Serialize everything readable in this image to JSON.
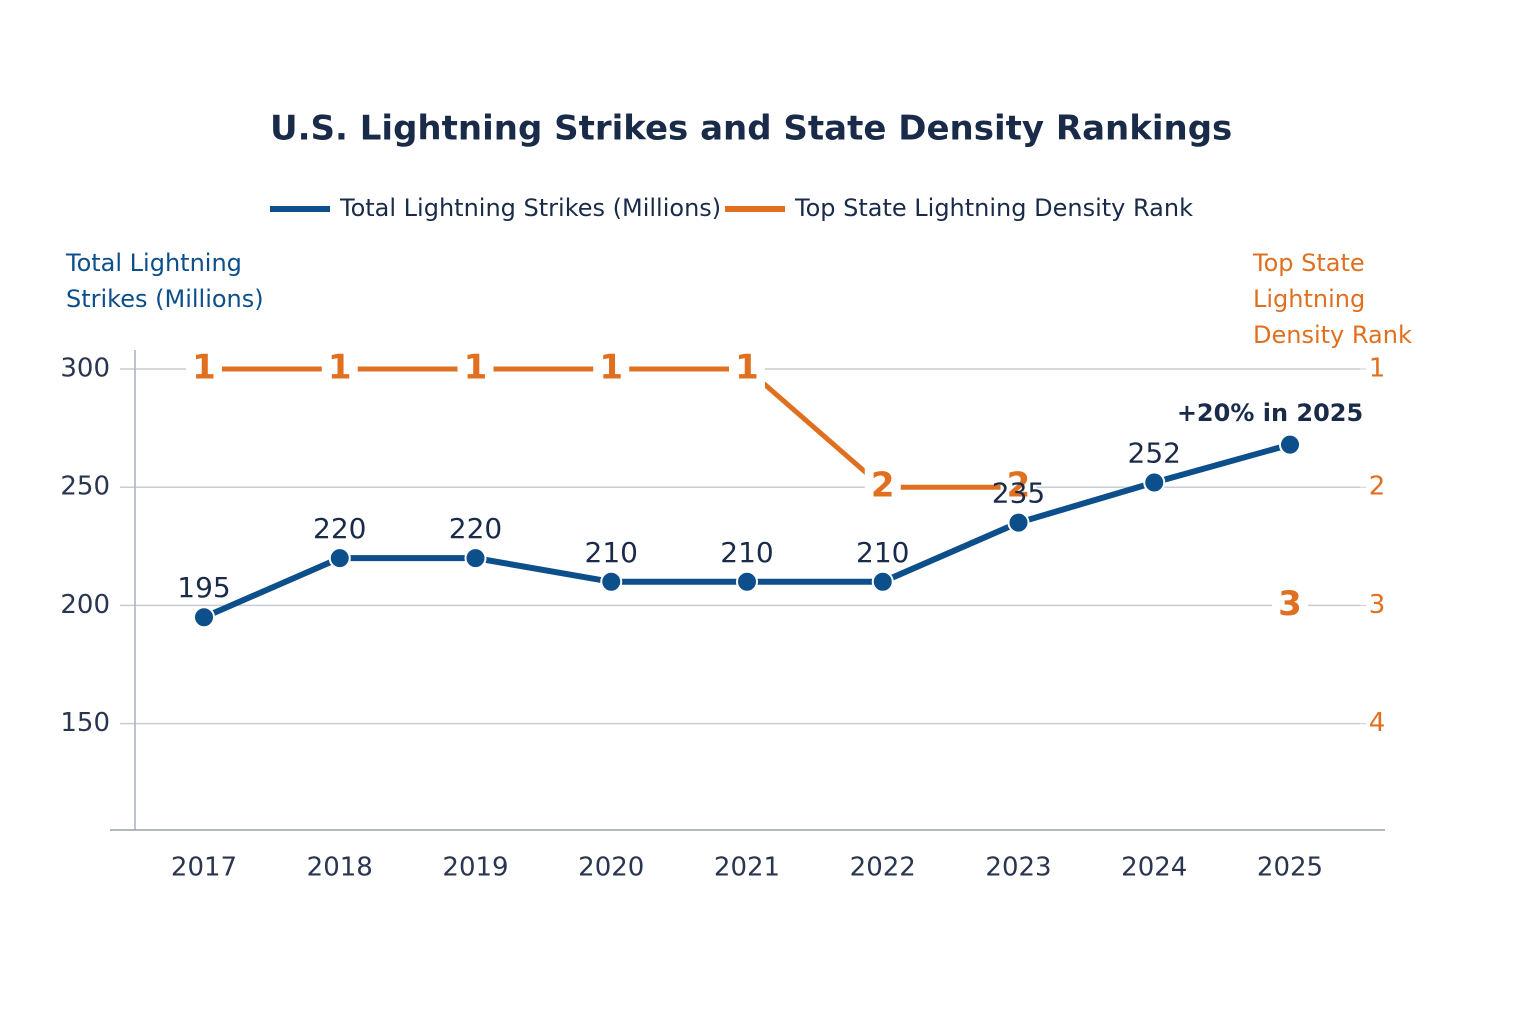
{
  "chart_data": {
    "type": "line",
    "title": "U.S. Lightning Strikes and State Density Rankings",
    "categories": [
      "2017",
      "2018",
      "2019",
      "2020",
      "2021",
      "2022",
      "2023",
      "2024",
      "2025"
    ],
    "series": [
      {
        "name": "Total Lightning Strikes (Millions)",
        "color": "#0d4f8b",
        "values": [
          195,
          220,
          220,
          210,
          210,
          210,
          235,
          252,
          268
        ],
        "labeled": [
          true,
          true,
          true,
          true,
          true,
          true,
          true,
          true,
          false
        ]
      },
      {
        "name": "Top State Lightning Density Rank",
        "color": "#e07020",
        "axis": "y2",
        "values": [
          1,
          1,
          1,
          1,
          1,
          2,
          2,
          null,
          3
        ]
      }
    ],
    "ylabel": [
      "Total Lightning",
      "Strikes (Millions)"
    ],
    "y2label": [
      "Top State",
      "Lightning",
      "Density Rank"
    ],
    "ylim": [
      105,
      300
    ],
    "yticks": [
      300,
      250,
      200,
      150
    ],
    "y2lim": [
      4.9,
      1
    ],
    "y2ticks": [
      1,
      2,
      3,
      4
    ],
    "annotation": "+20% in 2025",
    "grid": true,
    "legend": "top"
  }
}
